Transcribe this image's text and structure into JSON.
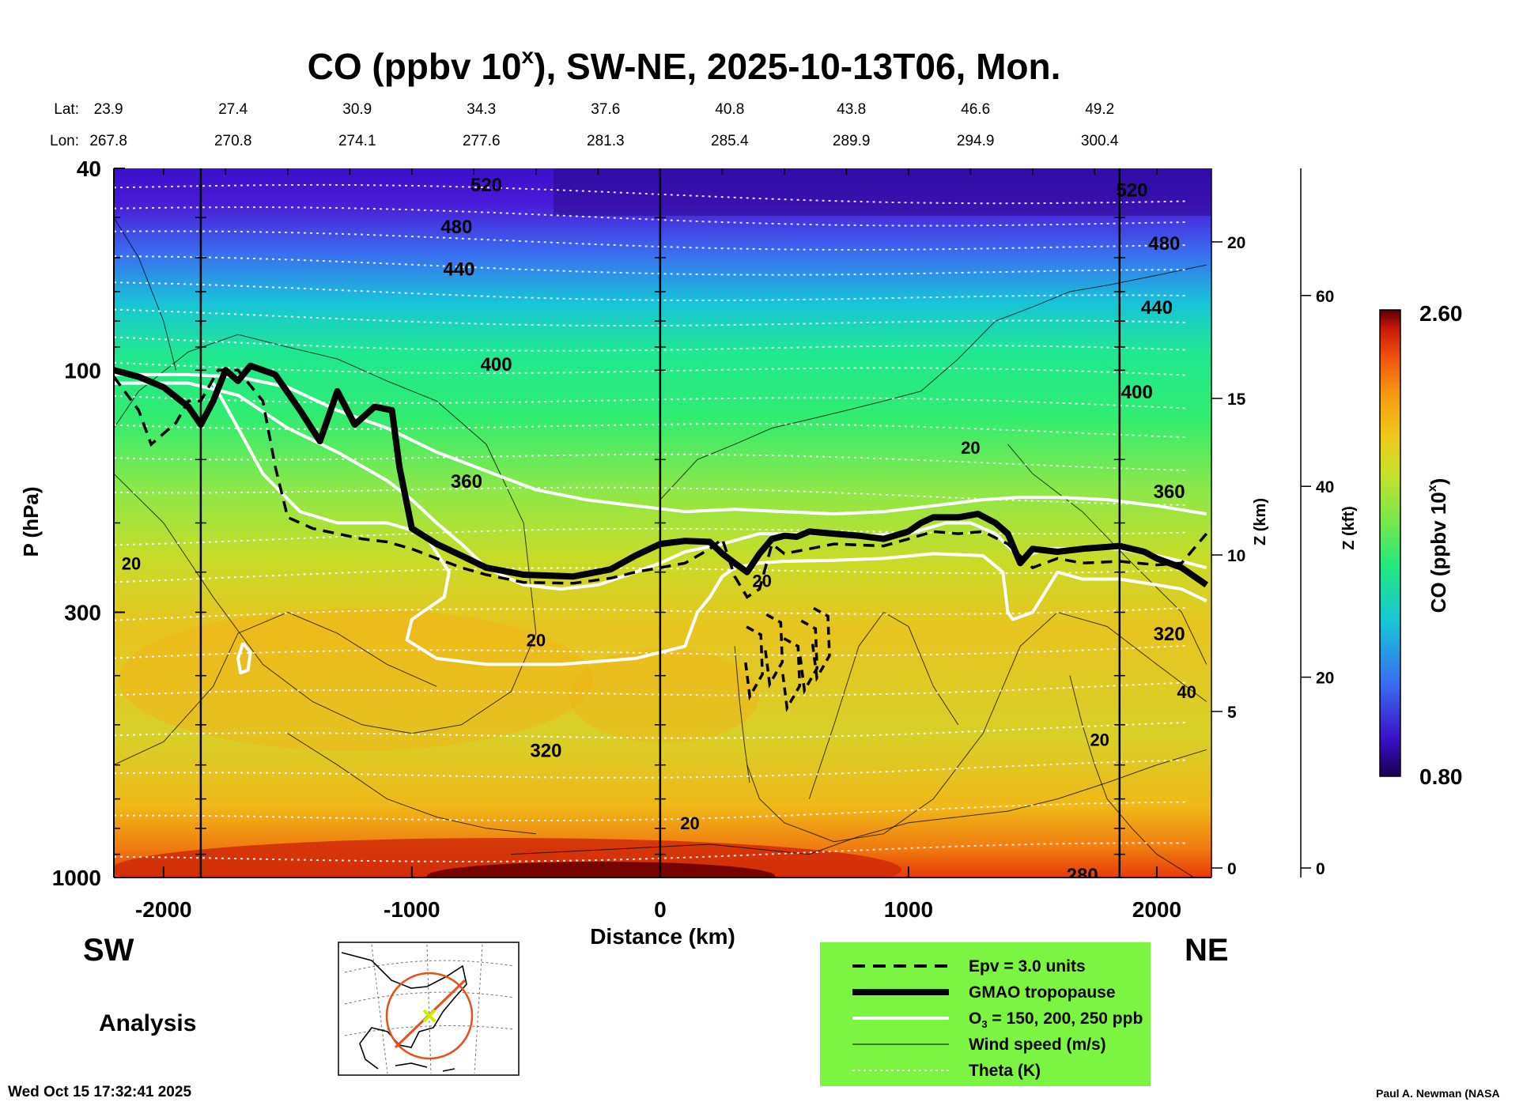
{
  "chart_data": {
    "type": "heatmap",
    "title": "CO (ppbv 10ˣ), SW-NE, 2025-10-13T06, Mon.",
    "title_parts": {
      "pre": "CO (ppbv 10",
      "sup": "x",
      "post": "), SW-NE, 2025-10-13T06, Mon."
    },
    "xlabel": "Distance (km)",
    "ylabel": "P (hPa)",
    "zlabel": "Z (km)",
    "zlabel2": "Z (kft)",
    "xlim": [
      -2200,
      2220
    ],
    "ylim": [
      1000,
      40
    ],
    "y_scale": "log",
    "x_ticks": [
      -2000,
      -1000,
      0,
      1000,
      2000
    ],
    "x_tick_labels": [
      "-2000",
      "-1000",
      "0",
      "1000",
      "2000"
    ],
    "y_ticks": [
      40,
      100,
      300,
      1000
    ],
    "y_tick_labels": [
      "40",
      "100",
      "300",
      "1000"
    ],
    "z_km_ticks": [
      0,
      5,
      10,
      15,
      20
    ],
    "z_km_labels": [
      "0",
      "5",
      "10",
      "15",
      "20"
    ],
    "z_kft_ticks": [
      0,
      20,
      40,
      60
    ],
    "z_kft_labels": [
      "0",
      "20",
      "40",
      "60"
    ],
    "lat_label": "Lat:",
    "lon_label": "Lon:",
    "lat_values": [
      "23.9",
      "27.4",
      "30.9",
      "34.3",
      "37.6",
      "40.8",
      "43.8",
      "46.6",
      "49.2"
    ],
    "lon_values": [
      "267.8",
      "270.8",
      "274.1",
      "277.6",
      "281.3",
      "285.4",
      "289.9",
      "294.9",
      "300.4"
    ],
    "lat_lon_positions_km": [
      -2190,
      -1720,
      -1220,
      -720,
      -220,
      280,
      770,
      1270,
      1770
    ],
    "vertical_lines_km": [
      -1850,
      0,
      1850
    ],
    "colorbar": {
      "label": "CO (ppbv 10ˣ)",
      "label_pre": "CO (ppbv 10",
      "label_sup": "x",
      "label_post": ")",
      "min": "0.80",
      "max": "2.60"
    },
    "theta_labels": [
      {
        "text": "520",
        "x": -700,
        "p": 43
      },
      {
        "text": "480",
        "x": -820,
        "p": 52
      },
      {
        "text": "440",
        "x": -810,
        "p": 63
      },
      {
        "text": "400",
        "x": -660,
        "p": 97
      },
      {
        "text": "360",
        "x": -780,
        "p": 165
      },
      {
        "text": "320",
        "x": -460,
        "p": 560
      },
      {
        "text": "280",
        "x": 1700,
        "p": 985
      },
      {
        "text": "520",
        "x": 1900,
        "p": 44
      },
      {
        "text": "480",
        "x": 2030,
        "p": 56
      },
      {
        "text": "440",
        "x": 2000,
        "p": 75
      },
      {
        "text": "400",
        "x": 1920,
        "p": 110
      },
      {
        "text": "360",
        "x": 2050,
        "p": 173
      },
      {
        "text": "320",
        "x": 2050,
        "p": 330
      }
    ],
    "wind_labels": [
      {
        "text": "20",
        "x": -2130,
        "p": 240
      },
      {
        "text": "20",
        "x": -500,
        "p": 340
      },
      {
        "text": "20",
        "x": 410,
        "p": 260
      },
      {
        "text": "20",
        "x": 1250,
        "p": 142
      },
      {
        "text": "20",
        "x": 120,
        "p": 780
      },
      {
        "text": "40",
        "x": 2120,
        "p": 430
      },
      {
        "text": "20",
        "x": 1770,
        "p": 535
      }
    ],
    "series": [
      {
        "name": "GMAO tropopause",
        "points": [
          [
            -2200,
            100
          ],
          [
            -2100,
            103
          ],
          [
            -2000,
            108
          ],
          [
            -1900,
            118
          ],
          [
            -1850,
            128
          ],
          [
            -1800,
            115
          ],
          [
            -1750,
            100
          ],
          [
            -1700,
            105
          ],
          [
            -1650,
            98
          ],
          [
            -1550,
            102
          ],
          [
            -1450,
            120
          ],
          [
            -1370,
            138
          ],
          [
            -1300,
            110
          ],
          [
            -1230,
            128
          ],
          [
            -1150,
            118
          ],
          [
            -1080,
            120
          ],
          [
            -1050,
            155
          ],
          [
            -1000,
            205
          ],
          [
            -900,
            220
          ],
          [
            -800,
            232
          ],
          [
            -700,
            245
          ],
          [
            -550,
            253
          ],
          [
            -350,
            255
          ],
          [
            -200,
            247
          ],
          [
            -100,
            232
          ],
          [
            0,
            220
          ],
          [
            100,
            217
          ],
          [
            200,
            218
          ],
          [
            250,
            230
          ],
          [
            300,
            240
          ],
          [
            350,
            250
          ],
          [
            400,
            230
          ],
          [
            450,
            215
          ],
          [
            500,
            212
          ],
          [
            550,
            213
          ],
          [
            600,
            208
          ],
          [
            700,
            210
          ],
          [
            800,
            212
          ],
          [
            900,
            215
          ],
          [
            1000,
            208
          ],
          [
            1050,
            200
          ],
          [
            1100,
            195
          ],
          [
            1200,
            195
          ],
          [
            1280,
            192
          ],
          [
            1350,
            200
          ],
          [
            1400,
            210
          ],
          [
            1450,
            240
          ],
          [
            1500,
            225
          ],
          [
            1600,
            228
          ],
          [
            1700,
            225
          ],
          [
            1850,
            222
          ],
          [
            1950,
            228
          ],
          [
            2000,
            235
          ],
          [
            2100,
            245
          ],
          [
            2200,
            265
          ]
        ]
      },
      {
        "name": "Epv = 3.0 units",
        "points": [
          [
            -2200,
            103
          ],
          [
            -2100,
            120
          ],
          [
            -2050,
            140
          ],
          [
            -1950,
            127
          ],
          [
            -1900,
            115
          ],
          [
            -1850,
            115
          ],
          [
            -1780,
            100
          ],
          [
            -1700,
            100
          ],
          [
            -1600,
            115
          ],
          [
            -1550,
            155
          ],
          [
            -1500,
            195
          ],
          [
            -1400,
            205
          ],
          [
            -1300,
            210
          ],
          [
            -1200,
            215
          ],
          [
            -1100,
            218
          ],
          [
            -1000,
            225
          ],
          [
            -900,
            235
          ],
          [
            -800,
            245
          ],
          [
            -700,
            253
          ],
          [
            -550,
            262
          ],
          [
            -350,
            263
          ],
          [
            -200,
            257
          ],
          [
            -100,
            250
          ],
          [
            0,
            245
          ],
          [
            100,
            240
          ],
          [
            200,
            225
          ],
          [
            250,
            215
          ],
          [
            300,
            255
          ],
          [
            350,
            280
          ],
          [
            400,
            270
          ],
          [
            450,
            220
          ],
          [
            500,
            230
          ],
          [
            600,
            225
          ],
          [
            700,
            220
          ],
          [
            900,
            222
          ],
          [
            1000,
            215
          ],
          [
            1100,
            208
          ],
          [
            1200,
            210
          ],
          [
            1300,
            208
          ],
          [
            1400,
            220
          ],
          [
            1500,
            245
          ],
          [
            1600,
            235
          ],
          [
            1700,
            240
          ],
          [
            1850,
            238
          ],
          [
            2000,
            242
          ],
          [
            2100,
            240
          ],
          [
            2200,
            210
          ]
        ]
      }
    ],
    "legend": {
      "items": [
        "Epv = 3.0 units",
        "GMAO tropopause",
        "O₃ = 150, 200, 250 ppb",
        "Wind speed (m/s)",
        "Theta (K)"
      ],
      "o3_pre": "O",
      "o3_sub": "3",
      "o3_post": " = 150, 200, 250 ppb",
      "background": "#7cf542"
    },
    "grid": false
  },
  "labels": {
    "sw": "SW",
    "ne": "NE",
    "analysis": "Analysis",
    "timestamp": "Wed Oct 15 17:32:41 2025",
    "credit": "Paul A. Newman (NASA"
  },
  "colors": {
    "colorbar": [
      "#1a0050",
      "#3a10c8",
      "#3a6ef0",
      "#18c4d8",
      "#22e880",
      "#7ae84a",
      "#c8e02c",
      "#f0c81a",
      "#f59a10",
      "#f05010",
      "#c81808",
      "#5a0000"
    ],
    "tropopause": "#000000",
    "o3": "#ffffff",
    "theta": "#ffffff"
  }
}
